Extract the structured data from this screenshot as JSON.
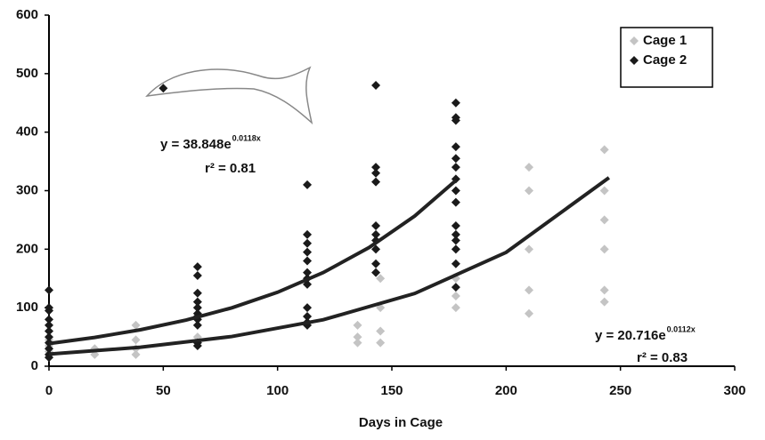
{
  "chart_data": {
    "type": "scatter",
    "xlabel": "Days in Cage",
    "xlim": [
      0,
      300
    ],
    "xticks": [
      0,
      50,
      100,
      150,
      200,
      250,
      300
    ],
    "ylim": [
      0,
      600
    ],
    "yticks": [
      0,
      100,
      200,
      300,
      400,
      500,
      600
    ],
    "legend": "upper right",
    "series": [
      {
        "name": "Cage 1",
        "color": "#c4c4c4",
        "x": [
          0,
          0,
          0,
          0,
          0,
          20,
          20,
          38,
          38,
          38,
          38,
          65,
          65,
          113,
          113,
          135,
          135,
          135,
          145,
          145,
          145,
          145,
          178,
          178,
          178,
          178,
          210,
          210,
          210,
          210,
          210,
          243,
          243,
          243,
          243,
          243,
          243
        ],
        "values": [
          60,
          45,
          35,
          25,
          15,
          30,
          20,
          70,
          45,
          30,
          20,
          50,
          40,
          85,
          70,
          70,
          50,
          40,
          150,
          100,
          60,
          40,
          200,
          150,
          120,
          100,
          340,
          300,
          200,
          130,
          90,
          370,
          300,
          250,
          200,
          130,
          110
        ]
      },
      {
        "name": "Cage 2",
        "color": "#1a1a1a",
        "x": [
          0,
          0,
          0,
          0,
          0,
          0,
          0,
          0,
          0,
          0,
          0,
          50,
          65,
          65,
          65,
          65,
          65,
          65,
          65,
          65,
          65,
          65,
          65,
          113,
          113,
          113,
          113,
          113,
          113,
          113,
          113,
          113,
          113,
          113,
          113,
          143,
          143,
          143,
          143,
          143,
          143,
          143,
          143,
          143,
          143,
          178,
          178,
          178,
          178,
          178,
          178,
          178,
          178,
          178,
          178,
          178,
          178,
          178,
          178,
          178
        ],
        "values": [
          130,
          100,
          95,
          80,
          70,
          60,
          50,
          40,
          30,
          20,
          15,
          475,
          170,
          155,
          125,
          110,
          100,
          90,
          85,
          80,
          70,
          40,
          35,
          310,
          225,
          210,
          195,
          180,
          160,
          150,
          140,
          100,
          85,
          75,
          70,
          480,
          340,
          330,
          315,
          240,
          225,
          215,
          200,
          175,
          160,
          450,
          425,
          420,
          375,
          355,
          340,
          320,
          300,
          280,
          240,
          225,
          215,
          200,
          175,
          135
        ]
      }
    ],
    "trendlines": [
      {
        "x": [
          0,
          20,
          40,
          60,
          80,
          100,
          120,
          140,
          160,
          178
        ],
        "values": [
          38.8,
          49.2,
          62.3,
          78.9,
          99.8,
          126.4,
          160.1,
          202.7,
          256.6,
          317.4
        ],
        "equation": "y = 38.848e",
        "exponent": "0.0118x",
        "r2": "r² = 0.81"
      },
      {
        "x": [
          0,
          40,
          80,
          120,
          160,
          200,
          245
        ],
        "values": [
          20.7,
          32.4,
          50.8,
          79.4,
          124.3,
          194.6,
          322.2
        ],
        "equation": "y = 20.716e",
        "exponent": "0.0112x",
        "r2": "r² = 0.83"
      }
    ]
  }
}
